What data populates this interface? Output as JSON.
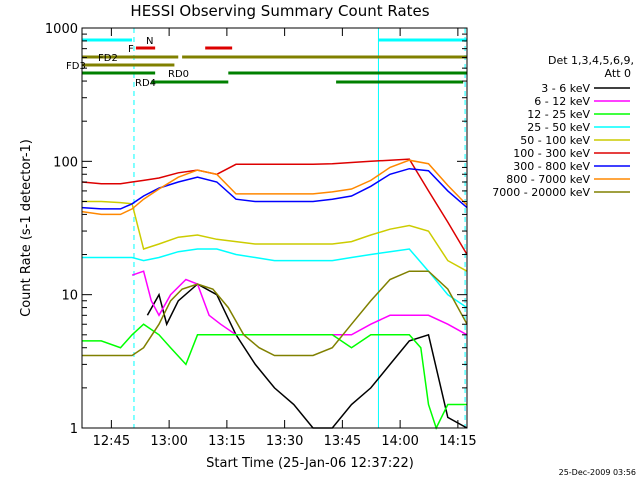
{
  "chart_data": {
    "type": "line",
    "title": "HESSI Observing Summary Count Rates",
    "xlabel": "Start Time (25-Jan-06 12:37:22)",
    "ylabel": "Count Rate (s-1 detector-1)",
    "yscale": "log",
    "ylim": [
      1,
      1000
    ],
    "xlim_minutes_after_start": [
      0,
      100
    ],
    "x_ticks": [
      "12:45",
      "13:00",
      "13:15",
      "13:30",
      "13:45",
      "14:00",
      "14:15"
    ],
    "y_ticks": [
      "1",
      "10",
      "100",
      "1000"
    ],
    "legend": {
      "placement": "top-right, outside plot",
      "header_line1": "Det 1,3,4,5,6,9,",
      "header_line2": "Att 0"
    },
    "series": [
      {
        "name": "3 - 6 keV",
        "color": "#000000",
        "x": [
          13,
          17,
          20,
          22,
          25,
          30,
          35,
          40,
          45,
          50,
          55,
          60,
          65,
          70,
          75,
          80,
          85,
          90,
          95,
          100
        ],
        "y": [
          null,
          7,
          10,
          6,
          9,
          12,
          10,
          5,
          3,
          2,
          1.5,
          1,
          1,
          1.5,
          2,
          3,
          4.5,
          5,
          1.2,
          1
        ]
      },
      {
        "name": "6 - 12 keV",
        "color": "#ff00ff",
        "x": [
          13,
          16,
          18,
          20,
          23,
          27,
          30,
          33,
          36,
          40,
          45,
          50,
          55,
          60,
          65,
          70,
          75,
          80,
          85,
          88,
          90,
          95,
          100
        ],
        "y": [
          14,
          15,
          9,
          7,
          10,
          13,
          12,
          7,
          6,
          5,
          5,
          5,
          5,
          5,
          5,
          5,
          6,
          7,
          7,
          7,
          7,
          6,
          5
        ]
      },
      {
        "name": "12 - 25 keV",
        "color": "#00ff00",
        "x": [
          0,
          5,
          10,
          13,
          16,
          20,
          23,
          27,
          30,
          35,
          40,
          45,
          50,
          55,
          60,
          65,
          70,
          75,
          80,
          85,
          88,
          90,
          92,
          95,
          100
        ],
        "y": [
          4.5,
          4.5,
          4,
          5,
          6,
          5,
          4,
          3,
          5,
          5,
          5,
          5,
          5,
          5,
          5,
          5,
          4,
          5,
          5,
          5,
          4,
          1.5,
          1,
          1.5,
          1.5
        ]
      },
      {
        "name": "25 - 50 keV",
        "color": "#00ffff",
        "x": [
          0,
          5,
          10,
          13,
          16,
          20,
          25,
          30,
          35,
          40,
          45,
          50,
          55,
          60,
          65,
          70,
          75,
          80,
          85,
          90,
          95,
          100
        ],
        "y": [
          19,
          19,
          19,
          19,
          18,
          19,
          21,
          22,
          22,
          20,
          19,
          18,
          18,
          18,
          18,
          19,
          20,
          21,
          22,
          15,
          10,
          8
        ]
      },
      {
        "name": "50 - 100 keV",
        "color": "#cccc00",
        "x": [
          0,
          5,
          10,
          13,
          16,
          20,
          25,
          30,
          35,
          40,
          45,
          50,
          55,
          60,
          65,
          70,
          75,
          80,
          85,
          90,
          95,
          100
        ],
        "y": [
          50,
          50,
          49,
          48,
          22,
          24,
          27,
          28,
          26,
          25,
          24,
          24,
          24,
          24,
          24,
          25,
          28,
          31,
          33,
          30,
          18,
          15
        ]
      },
      {
        "name": "100 - 300 keV",
        "color": "#dd0000",
        "x": [
          0,
          5,
          10,
          13,
          16,
          20,
          25,
          30,
          35,
          40,
          45,
          50,
          55,
          60,
          65,
          70,
          75,
          80,
          85,
          90,
          95,
          100
        ],
        "y": [
          70,
          68,
          68,
          70,
          72,
          75,
          82,
          86,
          80,
          95,
          95,
          95,
          95,
          95,
          96,
          98,
          100,
          102,
          104,
          60,
          35,
          20
        ]
      },
      {
        "name": "300 - 800 keV",
        "color": "#0000ff",
        "x": [
          0,
          5,
          10,
          13,
          16,
          20,
          25,
          30,
          35,
          40,
          45,
          50,
          55,
          60,
          65,
          70,
          75,
          80,
          85,
          90,
          95,
          100
        ],
        "y": [
          45,
          44,
          44,
          48,
          55,
          63,
          70,
          76,
          70,
          52,
          50,
          50,
          50,
          50,
          52,
          55,
          65,
          80,
          88,
          85,
          60,
          45
        ]
      },
      {
        "name": "800 - 7000 keV",
        "color": "#ff8800",
        "x": [
          0,
          5,
          10,
          13,
          16,
          20,
          25,
          30,
          35,
          40,
          45,
          50,
          55,
          60,
          65,
          70,
          75,
          80,
          85,
          90,
          95,
          100
        ],
        "y": [
          42,
          40,
          40,
          44,
          52,
          62,
          76,
          86,
          80,
          57,
          57,
          57,
          57,
          57,
          59,
          62,
          72,
          90,
          102,
          96,
          66,
          47
        ]
      },
      {
        "name": "7000 - 20000 keV",
        "color": "#808000",
        "x": [
          0,
          5,
          10,
          13,
          16,
          20,
          23,
          26,
          30,
          34,
          38,
          42,
          46,
          50,
          55,
          60,
          65,
          70,
          75,
          80,
          85,
          90,
          95,
          100
        ],
        "y": [
          3.5,
          3.5,
          3.5,
          3.5,
          4,
          6,
          9,
          11,
          12,
          11,
          8,
          5,
          4,
          3.5,
          3.5,
          3.5,
          4,
          6,
          9,
          13,
          15,
          15,
          11,
          6
        ]
      }
    ],
    "annotations": [
      {
        "text": "N",
        "color": "#00ffff",
        "bars": [
          [
            0,
            13
          ],
          [
            77,
            100
          ]
        ]
      },
      {
        "text": "F",
        "color": "#dd0000",
        "bars": [
          [
            14,
            19
          ],
          [
            32,
            39
          ]
        ]
      },
      {
        "text": "FD2",
        "color": "#808000",
        "bars": [
          [
            0,
            25
          ],
          [
            26,
            100
          ]
        ]
      },
      {
        "text": "FD3",
        "color": "#808000",
        "bars": [
          [
            0,
            24
          ]
        ]
      },
      {
        "text": "RD0",
        "color": "#008000",
        "bars": [
          [
            0,
            19
          ],
          [
            38,
            100
          ]
        ]
      },
      {
        "text": "RD4",
        "color": "#008000",
        "bars": [
          [
            18,
            38
          ],
          [
            66,
            99
          ]
        ]
      }
    ],
    "vertical_lines": [
      {
        "x": 13.5,
        "color": "#00ffff",
        "style": "dashed"
      },
      {
        "x": 77,
        "color": "#00ffff",
        "style": "solid"
      },
      {
        "x": 99.5,
        "color": "#00ffff",
        "style": "dashed"
      }
    ],
    "grid": false
  },
  "footer": {
    "timestamp": "25-Dec-2009 03:56"
  }
}
